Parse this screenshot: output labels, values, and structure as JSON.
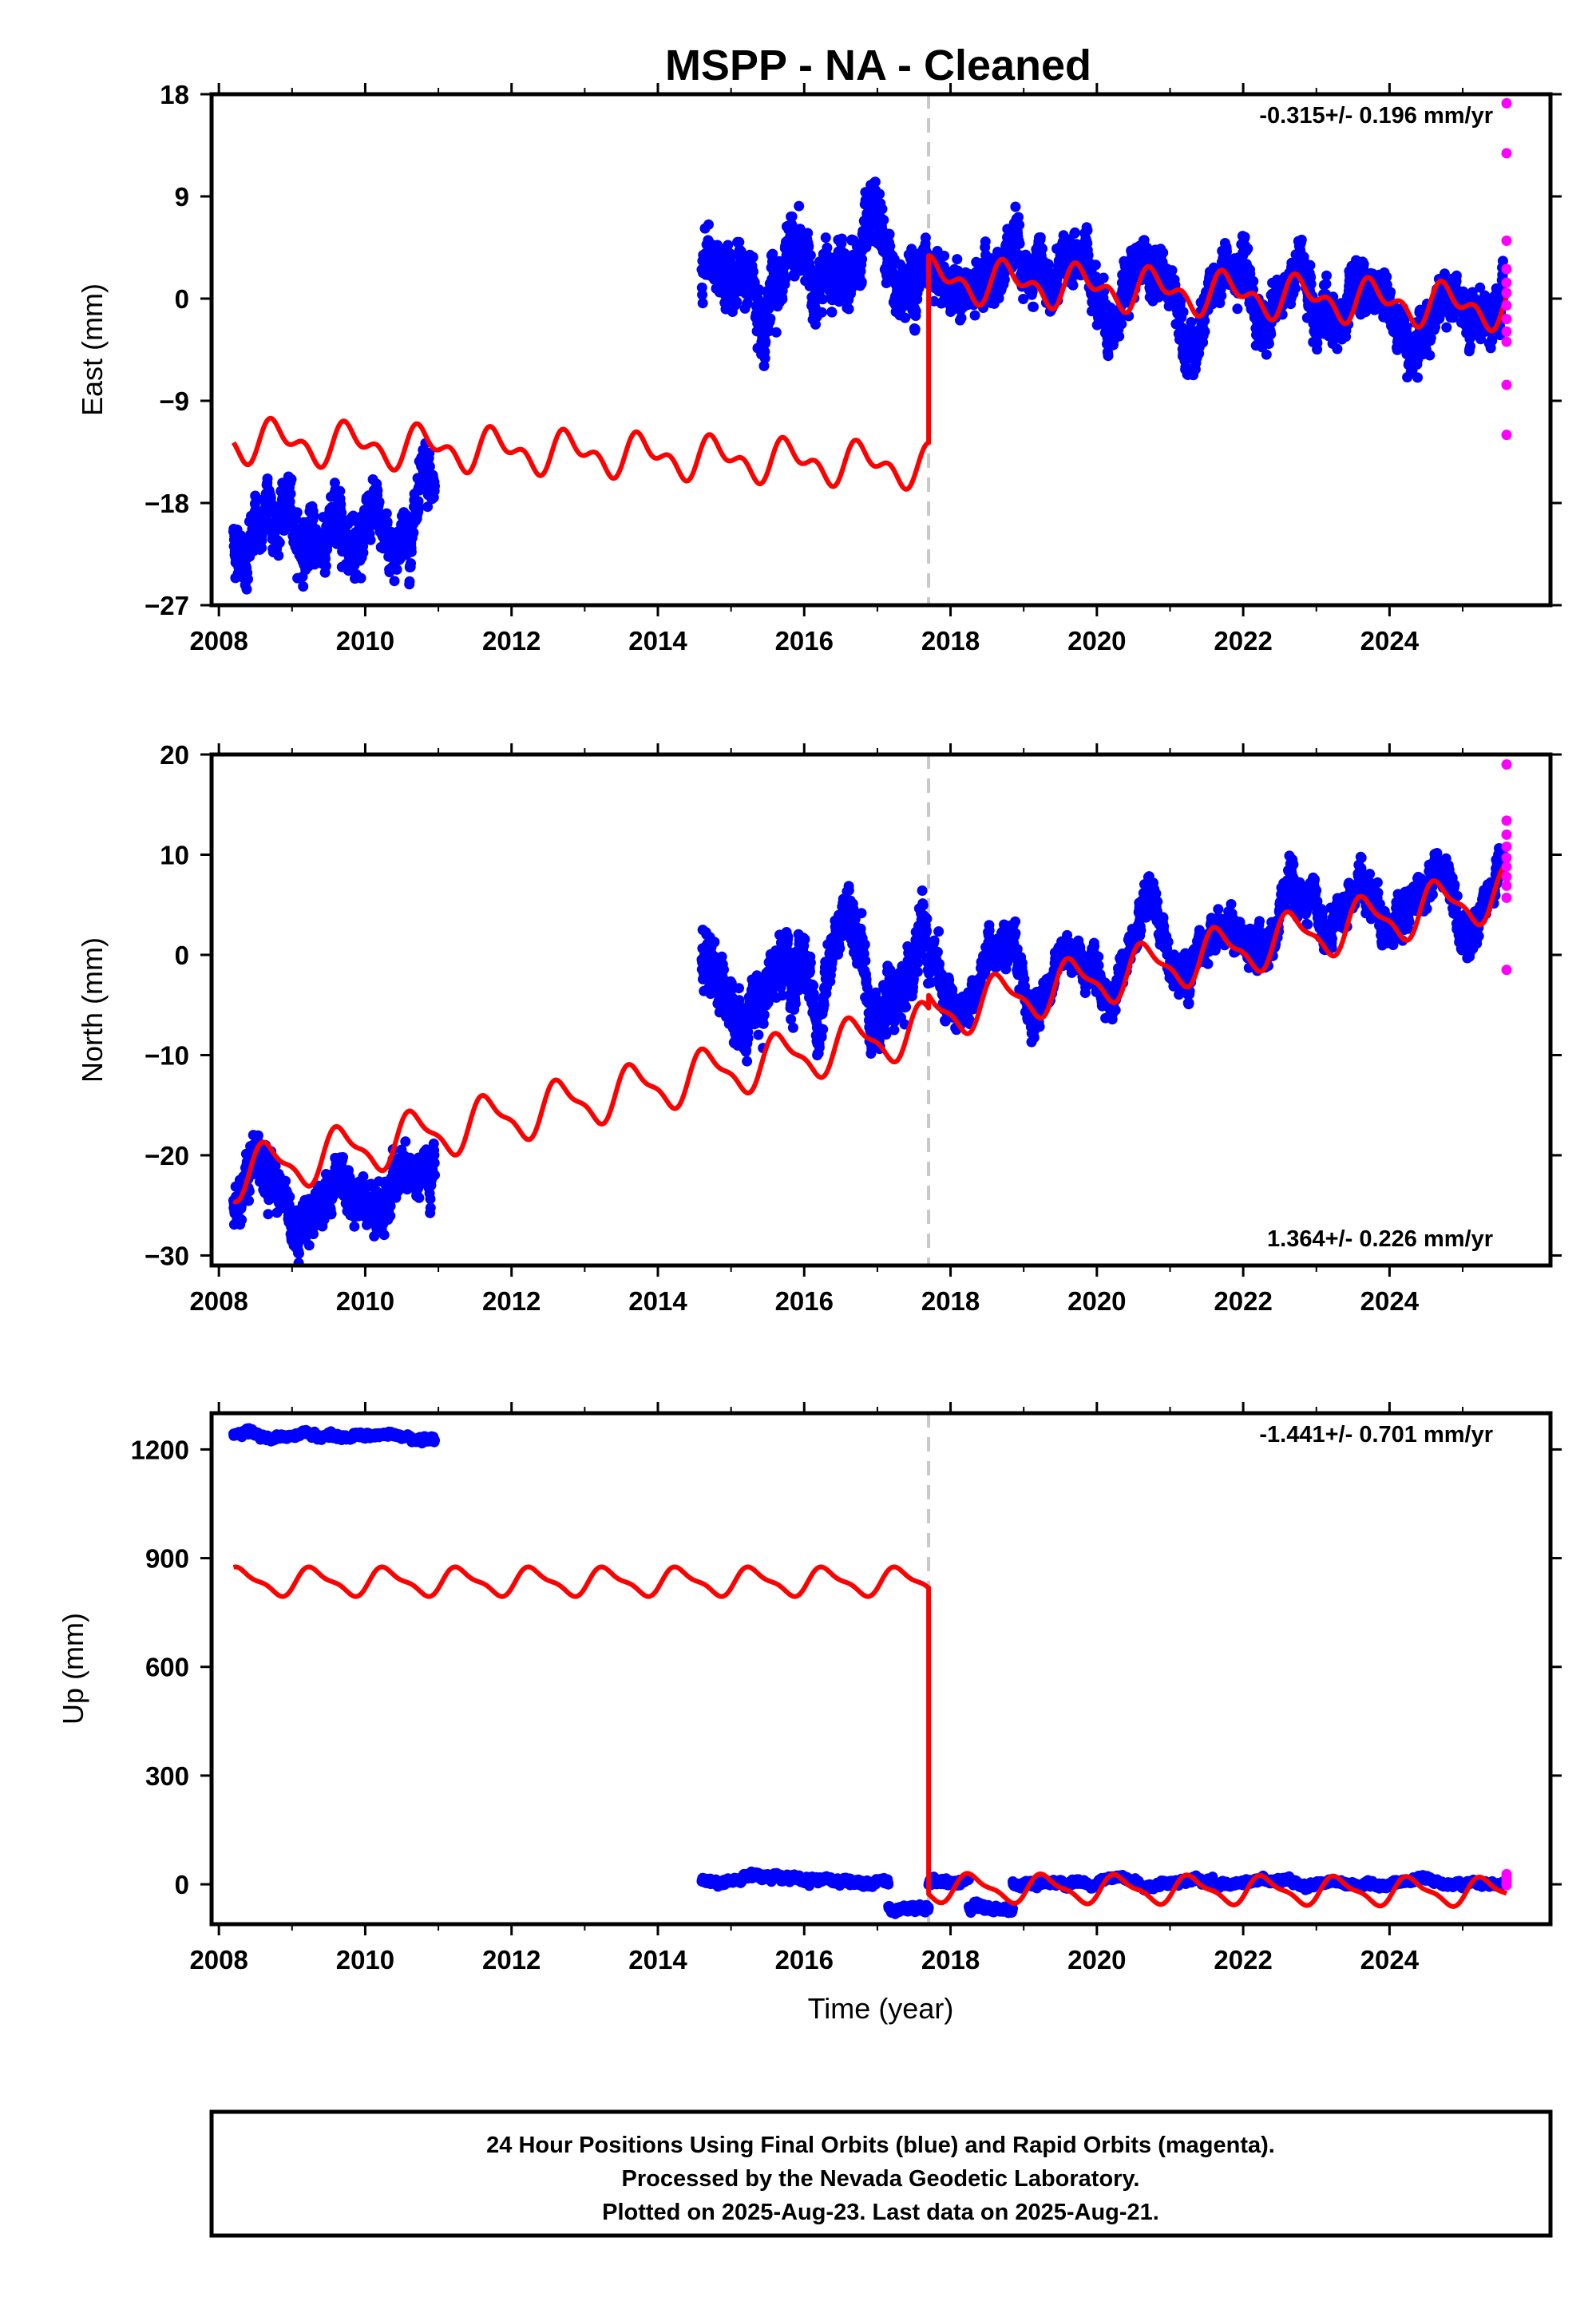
{
  "title": "MSPP  - NA - Cleaned",
  "colors": {
    "final": "#0000ff",
    "rapid": "#ff00ff",
    "model": "#ff0000",
    "offset_line": "#c8c8c8",
    "frame": "#000000"
  },
  "chart_data": [
    {
      "type": "scatter",
      "component": "east",
      "ylabel": "East (mm)",
      "xlabel": "",
      "xlim": [
        2007.9,
        2026.2
      ],
      "ylim": [
        -27,
        18
      ],
      "x_ticks": [
        2008,
        2010,
        2012,
        2014,
        2016,
        2018,
        2020,
        2022,
        2024
      ],
      "y_ticks": [
        -27,
        -18,
        -9,
        0,
        9,
        18
      ],
      "y_tick_labels": [
        "−27",
        "−18",
        "−9",
        "0",
        "9",
        "18"
      ],
      "rate_text": "-0.315+/- 0.196 mm/yr",
      "offset_epoch": 2017.7,
      "model": {
        "annual_amp": 1.4,
        "semiannual_amp": 1.0,
        "phase": 0.55,
        "segments": [
          {
            "t0": 2008.2,
            "t1": 2017.7,
            "v0": -12.5,
            "slope": -0.24
          },
          {
            "t0": 2017.7,
            "t1": 2025.6,
            "v0": 1.7,
            "slope": -0.32
          }
        ]
      },
      "data_segments": [
        {
          "t0": 2008.2,
          "t1": 2010.95,
          "mean": -20.3,
          "slope": 0,
          "spread": 1.7,
          "seasonal": 1.2
        },
        {
          "t0": 2014.6,
          "t1": 2017.7,
          "mean": 2.3,
          "slope": 0,
          "spread": 1.8,
          "seasonal": 1.3
        },
        {
          "t0": 2017.7,
          "t1": 2025.55,
          "mean": 2.0,
          "slope": -0.45,
          "spread": 1.5,
          "seasonal": 2.0
        }
      ],
      "rapid_points": [
        [
          2025.6,
          17.2
        ],
        [
          2025.6,
          12.8
        ],
        [
          2025.6,
          5.1
        ],
        [
          2025.6,
          2.6
        ],
        [
          2025.6,
          1.4
        ],
        [
          2025.6,
          0.5
        ],
        [
          2025.6,
          -0.6
        ],
        [
          2025.6,
          -1.8
        ],
        [
          2025.6,
          -2.9
        ],
        [
          2025.6,
          -3.8
        ],
        [
          2025.6,
          -7.6
        ],
        [
          2025.6,
          -12.0
        ]
      ]
    },
    {
      "type": "scatter",
      "component": "north",
      "ylabel": "North (mm)",
      "xlabel": "",
      "xlim": [
        2007.9,
        2026.2
      ],
      "ylim": [
        -31,
        20
      ],
      "x_ticks": [
        2008,
        2010,
        2012,
        2014,
        2016,
        2018,
        2020,
        2022,
        2024
      ],
      "y_ticks": [
        -30,
        -20,
        -10,
        0,
        10,
        20
      ],
      "y_tick_labels": [
        "−30",
        "−20",
        "−10",
        "0",
        "10",
        "20"
      ],
      "rate_text": "1.364+/- 0.226 mm/yr",
      "offset_epoch": 2017.7,
      "model": {
        "annual_amp": 2.3,
        "semiannual_amp": 0.8,
        "phase": 0.42,
        "segments": [
          {
            "t0": 2008.2,
            "t1": 2017.7,
            "v0": -22.0,
            "slope": 1.55
          },
          {
            "t0": 2017.7,
            "t1": 2025.6,
            "v0": -6.0,
            "slope": 1.55
          }
        ]
      },
      "data_segments": [
        {
          "t0": 2008.2,
          "t1": 2010.95,
          "mean": -24.0,
          "slope": 0.3,
          "spread": 1.6,
          "seasonal": 2.5
        },
        {
          "t0": 2014.6,
          "t1": 2017.7,
          "mean": -2.5,
          "slope": 0,
          "spread": 2.0,
          "seasonal": 2.5
        },
        {
          "t0": 2017.7,
          "t1": 2025.55,
          "mean": -4.0,
          "slope": 1.4,
          "spread": 1.3,
          "seasonal": 2.8
        }
      ],
      "rapid_points": [
        [
          2025.6,
          19.0
        ],
        [
          2025.6,
          13.4
        ],
        [
          2025.6,
          12.0
        ],
        [
          2025.6,
          10.8
        ],
        [
          2025.6,
          9.7
        ],
        [
          2025.6,
          8.8
        ],
        [
          2025.6,
          7.8
        ],
        [
          2025.6,
          6.9
        ],
        [
          2025.6,
          5.7
        ],
        [
          2025.6,
          -1.5
        ]
      ]
    },
    {
      "type": "scatter",
      "component": "up",
      "ylabel": "Up (mm)",
      "xlabel": "Time (year)",
      "xlim": [
        2007.9,
        2026.2
      ],
      "ylim": [
        -110,
        1300
      ],
      "x_ticks": [
        2008,
        2010,
        2012,
        2014,
        2016,
        2018,
        2020,
        2022,
        2024
      ],
      "y_ticks": [
        0,
        300,
        600,
        900,
        1200
      ],
      "y_tick_labels": [
        "0",
        "300",
        "600",
        "900",
        "1200"
      ],
      "rate_text": "-1.441+/- 0.701 mm/yr",
      "offset_epoch": 2017.7,
      "model": {
        "annual_amp": 35,
        "semiannual_amp": 12,
        "phase": 0.05,
        "segments": [
          {
            "t0": 2008.2,
            "t1": 2017.7,
            "v0": 835,
            "slope": 0
          },
          {
            "t0": 2017.7,
            "t1": 2025.6,
            "v0": -10,
            "slope": -1.44
          }
        ]
      },
      "data_segments": [
        {
          "t0": 2008.2,
          "t1": 2010.95,
          "mean": 1237,
          "slope": 0,
          "spread": 5,
          "seasonal": 6
        },
        {
          "t0": 2014.6,
          "t1": 2017.15,
          "mean": 12,
          "slope": 0,
          "spread": 6,
          "seasonal": 6
        },
        {
          "t0": 2017.15,
          "t1": 2017.7,
          "mean": -68,
          "slope": 0,
          "spread": 6,
          "seasonal": 0
        },
        {
          "t0": 2017.7,
          "t1": 2018.25,
          "mean": 8,
          "slope": 0,
          "spread": 6,
          "seasonal": 4
        },
        {
          "t0": 2018.25,
          "t1": 2018.85,
          "mean": -65,
          "slope": 0,
          "spread": 6,
          "seasonal": 0
        },
        {
          "t0": 2018.85,
          "t1": 2025.55,
          "mean": 4,
          "slope": 0,
          "spread": 5,
          "seasonal": 4
        }
      ],
      "rapid_points": [
        [
          2025.6,
          28
        ],
        [
          2025.6,
          20
        ],
        [
          2025.6,
          14
        ],
        [
          2025.6,
          9
        ],
        [
          2025.6,
          4
        ],
        [
          2025.6,
          -2
        ]
      ]
    }
  ],
  "footer": {
    "line1": "24 Hour Positions Using Final Orbits (blue) and Rapid Orbits (magenta).",
    "line2": "Processed by the Nevada Geodetic Laboratory.",
    "line3": "Plotted on 2025-Aug-23. Last data on 2025-Aug-21."
  }
}
